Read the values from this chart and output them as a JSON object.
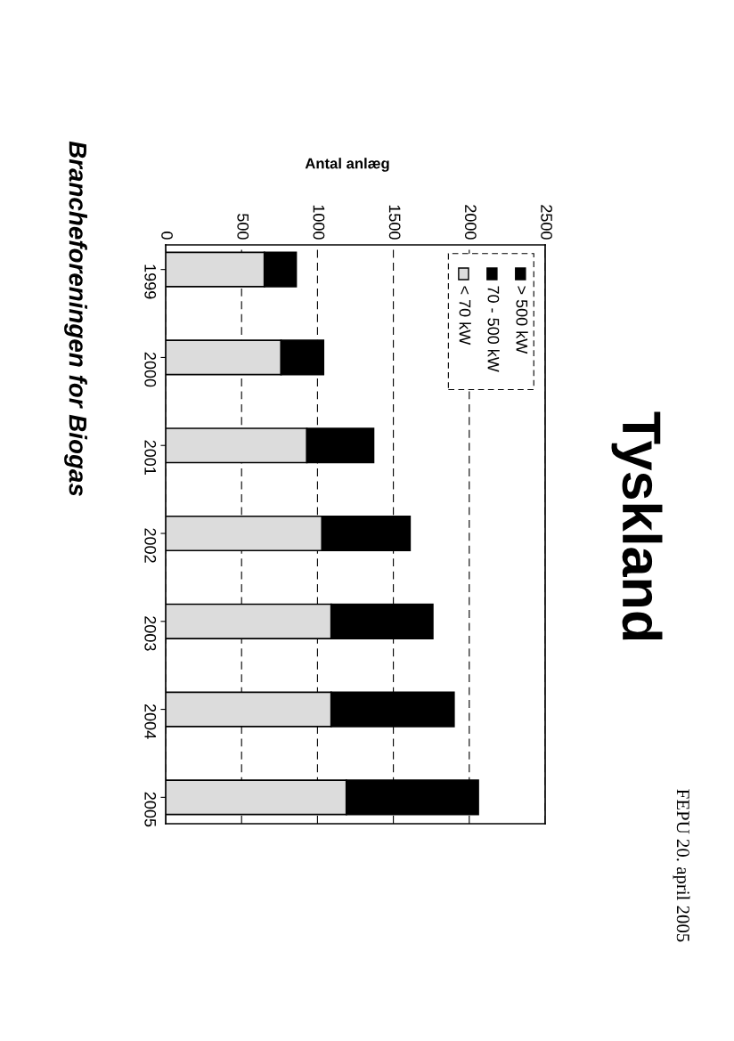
{
  "chart_data": {
    "type": "bar",
    "orientation": "horizontal",
    "stacked": true,
    "title": "Tyskland",
    "xlabel": "Antal anlæg",
    "categories": [
      "1999",
      "2000",
      "2001",
      "2002",
      "2003",
      "2004",
      "2005"
    ],
    "series": [
      {
        "name": "< 70 kW",
        "color": "#dcdcdc",
        "values": [
          650,
          760,
          930,
          1030,
          1090,
          1090,
          1190
        ]
      },
      {
        "name": "70 - 500 kW",
        "color": "#000000",
        "values": [
          210,
          280,
          440,
          580,
          670,
          810,
          870
        ]
      },
      {
        "name": "> 500 kW",
        "color": "#000000",
        "values": [
          null,
          null,
          null,
          null,
          null,
          null,
          null
        ]
      }
    ],
    "xlim": [
      0,
      2500
    ],
    "xticks": [
      0,
      500,
      1000,
      1500,
      2000,
      2500
    ],
    "grid": "x",
    "legend": "top right",
    "annotations": [
      "Brancheforeningen for Biogas",
      "FEPU 20. april 2005"
    ]
  }
}
